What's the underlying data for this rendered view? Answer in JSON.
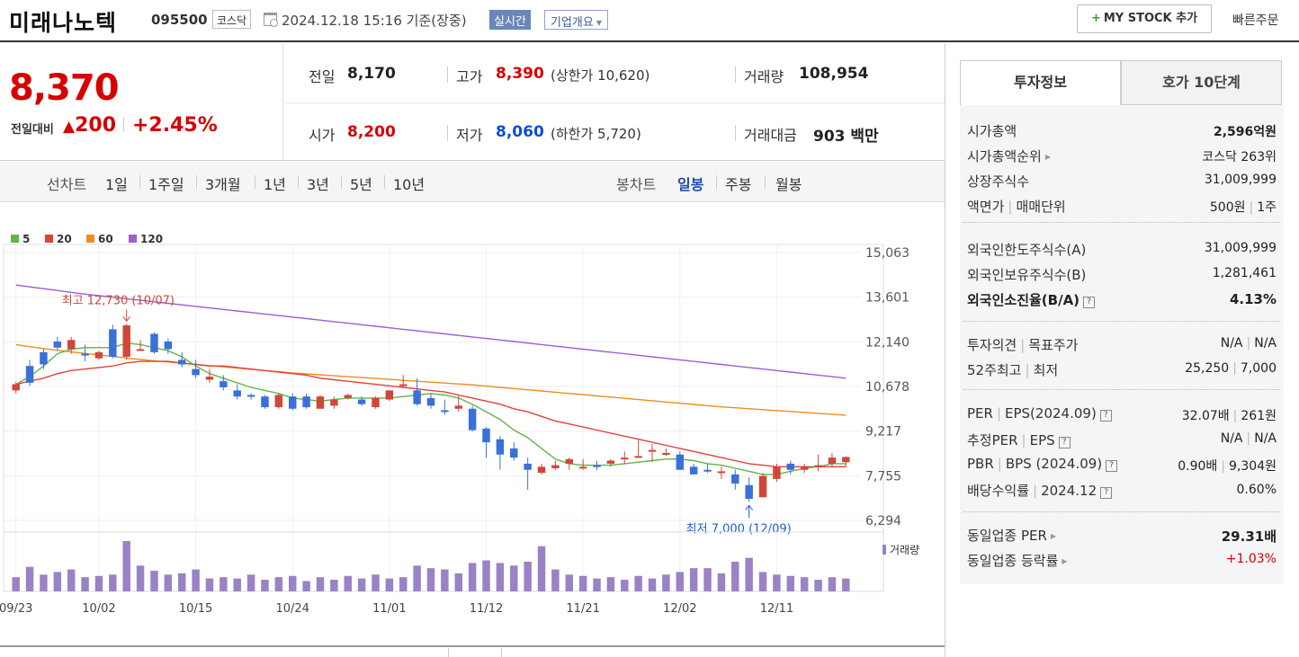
{
  "header": {
    "name": "미래나노텍",
    "code": "095500",
    "market": "코스닥",
    "datetime": "2024.12.18 15:16  기준(장중)",
    "realtime": "실시간",
    "company": "기업개요",
    "mystock": "MY STOCK 추가",
    "quick_order": "빠른주문"
  },
  "summary": {
    "price": "8,370",
    "change_label": "전일대비",
    "change_amt": "200",
    "change_pct": "+2.45%",
    "prev_label": "전일",
    "prev": "8,170",
    "open_label": "시가",
    "open": "8,200",
    "high_label": "고가",
    "high": "8,390",
    "upper_limit": "(상한가 10,620)",
    "low_label": "저가",
    "low": "8,060",
    "lower_limit": "(하한가 5,720)",
    "volume_label": "거래량",
    "volume": "108,954",
    "amount_label": "거래대금",
    "amount": "903 백만"
  },
  "period": {
    "line_label": "선차트",
    "line_tabs": [
      "1일",
      "1주일",
      "3개월",
      "1년",
      "3년",
      "5년",
      "10년"
    ],
    "candle_label": "봉차트",
    "candle_tabs": [
      "일봉",
      "주봉",
      "월봉"
    ],
    "active_candle": "일봉"
  },
  "chart_data": {
    "type": "candlestick",
    "legend": [
      "5",
      "20",
      "60",
      "120"
    ],
    "ma_colors": {
      "5": "#63b34a",
      "20": "#e0433a",
      "60": "#f08c1e",
      "120": "#9b5fd0"
    },
    "y_ticks": [
      "15,063",
      "13,601",
      "12,140",
      "10,678",
      "9,217",
      "7,755",
      "6,294"
    ],
    "ylim": [
      6294,
      15063
    ],
    "x_tick_labels": [
      "09/23",
      "10/02",
      "10/15",
      "10/24",
      "11/01",
      "11/12",
      "11/21",
      "12/02",
      "12/11"
    ],
    "x_tick_index": [
      0,
      6,
      13,
      20,
      27,
      34,
      41,
      48,
      55
    ],
    "max_annotation": "최고 12,730 (10/07)",
    "max_index": 8,
    "min_annotation": "최저 7,000 (12/09)",
    "min_index": 53,
    "volume_label": "거래량",
    "candles": [
      [
        10550,
        10830,
        10450,
        10750
      ],
      [
        11350,
        11550,
        10700,
        10800
      ],
      [
        11800,
        11900,
        11250,
        11400
      ],
      [
        12150,
        12300,
        11850,
        11950
      ],
      [
        11900,
        12300,
        11750,
        12200
      ],
      [
        11750,
        12050,
        11500,
        11700
      ],
      [
        11600,
        11850,
        11550,
        11800
      ],
      [
        12550,
        12700,
        11600,
        11650
      ],
      [
        11650,
        12730,
        11550,
        12680
      ],
      [
        11900,
        12200,
        11900,
        11900
      ],
      [
        12400,
        12450,
        11750,
        11800
      ],
      [
        12150,
        12250,
        11750,
        11900
      ],
      [
        11550,
        11800,
        11300,
        11400
      ],
      [
        11250,
        11550,
        10950,
        11050
      ],
      [
        10900,
        11250,
        10800,
        11000
      ],
      [
        10850,
        11050,
        10550,
        10650
      ],
      [
        10550,
        10750,
        10250,
        10350
      ],
      [
        10400,
        10450,
        10250,
        10350
      ],
      [
        10350,
        10400,
        9950,
        10000
      ],
      [
        10000,
        10450,
        9950,
        10400
      ],
      [
        10350,
        10450,
        9900,
        9950
      ],
      [
        10350,
        10450,
        9950,
        10000
      ],
      [
        9950,
        10400,
        9950,
        10350
      ],
      [
        10050,
        10350,
        9950,
        10250
      ],
      [
        10300,
        10450,
        10250,
        10400
      ],
      [
        10250,
        10350,
        10050,
        10100
      ],
      [
        10000,
        10350,
        9950,
        10300
      ],
      [
        10250,
        10550,
        10200,
        10550
      ],
      [
        10750,
        11050,
        10650,
        10750
      ],
      [
        10550,
        10950,
        10050,
        10100
      ],
      [
        10300,
        10450,
        9950,
        10050
      ],
      [
        9900,
        10250,
        9750,
        9850
      ],
      [
        9950,
        10400,
        9850,
        10050
      ],
      [
        9950,
        10050,
        9200,
        9250
      ],
      [
        9300,
        9350,
        8350,
        8850
      ],
      [
        8950,
        9050,
        7950,
        8450
      ],
      [
        8650,
        8850,
        8250,
        8350
      ],
      [
        8150,
        8350,
        7300,
        7950
      ],
      [
        7850,
        8150,
        7800,
        8050
      ],
      [
        8000,
        8250,
        7950,
        8100
      ],
      [
        8150,
        8350,
        7950,
        8300
      ],
      [
        8050,
        8300,
        7950,
        8050
      ],
      [
        8100,
        8250,
        7950,
        8050
      ],
      [
        8150,
        8300,
        8050,
        8250
      ],
      [
        8300,
        8550,
        8150,
        8350
      ],
      [
        8400,
        8950,
        8400,
        8400
      ],
      [
        8550,
        8800,
        8200,
        8600
      ],
      [
        8500,
        8650,
        8400,
        8500
      ],
      [
        8450,
        8550,
        7950,
        7950
      ],
      [
        8050,
        8150,
        7800,
        7800
      ],
      [
        7950,
        8150,
        7850,
        7900
      ],
      [
        7850,
        8050,
        7650,
        7900
      ],
      [
        7800,
        7950,
        7300,
        7500
      ],
      [
        7450,
        7700,
        6900,
        7000
      ],
      [
        7050,
        7850,
        7050,
        7750
      ],
      [
        7650,
        8150,
        7550,
        8050
      ],
      [
        8150,
        8250,
        7800,
        7950
      ],
      [
        7950,
        8150,
        7850,
        8050
      ],
      [
        8050,
        8450,
        7900,
        8100
      ],
      [
        8150,
        8500,
        8050,
        8350
      ],
      [
        8200,
        8390,
        8060,
        8370
      ]
    ],
    "volumes": [
      22,
      38,
      26,
      30,
      34,
      22,
      24,
      26,
      78,
      40,
      32,
      26,
      28,
      34,
      20,
      22,
      20,
      26,
      18,
      22,
      24,
      16,
      22,
      18,
      24,
      20,
      26,
      20,
      22,
      40,
      36,
      34,
      28,
      44,
      48,
      44,
      40,
      46,
      70,
      34,
      26,
      24,
      20,
      22,
      18,
      24,
      20,
      26,
      30,
      36,
      36,
      28,
      46,
      52,
      30,
      26,
      24,
      22,
      18,
      22,
      20
    ],
    "ma": {
      "5": [
        10750,
        11000,
        11350,
        11750,
        11900,
        11950,
        11950,
        11950,
        12100,
        12050,
        11950,
        11850,
        11650,
        11350,
        11100,
        10950,
        10800,
        10650,
        10550,
        10450,
        10300,
        10250,
        10200,
        10250,
        10300,
        10300,
        10300,
        10300,
        10350,
        10400,
        10450,
        10400,
        10300,
        10100,
        9850,
        9600,
        9250,
        9000,
        8650,
        8300,
        8150,
        8100,
        8100,
        8100,
        8150,
        8200,
        8250,
        8300,
        8300,
        8250,
        8150,
        8100,
        8000,
        7900,
        7800,
        7800,
        7900,
        8000,
        8050,
        8150,
        8150
      ],
      "20": [
        10750,
        10850,
        10950,
        11100,
        11200,
        11250,
        11300,
        11350,
        11450,
        11500,
        11500,
        11500,
        11450,
        11400,
        11350,
        11350,
        11300,
        11250,
        11200,
        11150,
        11100,
        11050,
        10950,
        10900,
        10850,
        10800,
        10750,
        10700,
        10650,
        10600,
        10550,
        10500,
        10400,
        10300,
        10200,
        10100,
        9950,
        9850,
        9700,
        9550,
        9450,
        9350,
        9250,
        9150,
        9050,
        8950,
        8850,
        8750,
        8650,
        8550,
        8450,
        8350,
        8250,
        8150,
        8100,
        8050,
        8050,
        8050,
        8050,
        8050,
        8050
      ],
      "60": [
        12050,
        11980,
        11920,
        11860,
        11810,
        11760,
        11710,
        11660,
        11610,
        11560,
        11520,
        11480,
        11440,
        11400,
        11360,
        11320,
        11280,
        11240,
        11200,
        11160,
        11120,
        11090,
        11060,
        11030,
        11000,
        10970,
        10940,
        10910,
        10880,
        10850,
        10820,
        10790,
        10760,
        10730,
        10690,
        10650,
        10610,
        10570,
        10530,
        10490,
        10450,
        10410,
        10370,
        10330,
        10290,
        10250,
        10210,
        10170,
        10130,
        10090,
        10050,
        10010,
        9980,
        9950,
        9920,
        9890,
        9860,
        9830,
        9800,
        9770,
        9740
      ],
      "120": [
        14000,
        13940,
        13880,
        13820,
        13760,
        13700,
        13650,
        13600,
        13550,
        13500,
        13450,
        13400,
        13350,
        13300,
        13250,
        13200,
        13150,
        13100,
        13050,
        13000,
        12950,
        12900,
        12850,
        12800,
        12750,
        12700,
        12650,
        12600,
        12550,
        12500,
        12450,
        12400,
        12350,
        12300,
        12250,
        12200,
        12150,
        12100,
        12050,
        12000,
        11950,
        11900,
        11850,
        11800,
        11750,
        11700,
        11650,
        11600,
        11550,
        11500,
        11450,
        11400,
        11350,
        11300,
        11250,
        11200,
        11150,
        11100,
        11050,
        11000,
        10950
      ]
    }
  },
  "invest": {
    "tab_active": "투자정보",
    "tab_other": "호가 10단계",
    "rows": [
      {
        "label": "시가총액",
        "value": "2,596억원",
        "bold": false
      },
      {
        "label": "시가총액순위",
        "value": "코스닥 263위"
      },
      {
        "label": "상장주식수",
        "value": "31,009,999"
      },
      {
        "label": "액면가",
        "label2": "매매단위",
        "value": "500원",
        "value2": "1주"
      },
      {
        "label": "외국인한도주식수(A)",
        "value": "31,009,999"
      },
      {
        "label": "외국인보유주식수(B)",
        "value": "1,281,461"
      },
      {
        "label": "외국인소진율(B/A)",
        "value": "4.13%"
      },
      {
        "label": "투자의견",
        "label2": "목표주가",
        "value": "N/A",
        "value2": "N/A"
      },
      {
        "label": "52주최고",
        "label2": "최저",
        "value": "25,250",
        "value2": "7,000"
      },
      {
        "label": "PER",
        "label2": "EPS(2024.09)",
        "value": "32.07배",
        "value2": "261원"
      },
      {
        "label": "추정PER",
        "label2": "EPS",
        "value": "N/A",
        "value2": "N/A"
      },
      {
        "label": "PBR",
        "label2": "BPS (2024.09)",
        "value": "0.90배",
        "value2": "9,304원"
      },
      {
        "label": "배당수익률",
        "label2": "2024.12",
        "value": "0.60%"
      },
      {
        "label": "동일업종 PER",
        "value": "29.31배"
      },
      {
        "label": "동일업종 등락률",
        "value": "+1.03%"
      }
    ]
  },
  "colors": {
    "up": "#d60000",
    "down": "#0b4ecf",
    "candle_up": "#d0473a",
    "candle_down": "#3a70d8",
    "volume": "#9a82c6"
  }
}
